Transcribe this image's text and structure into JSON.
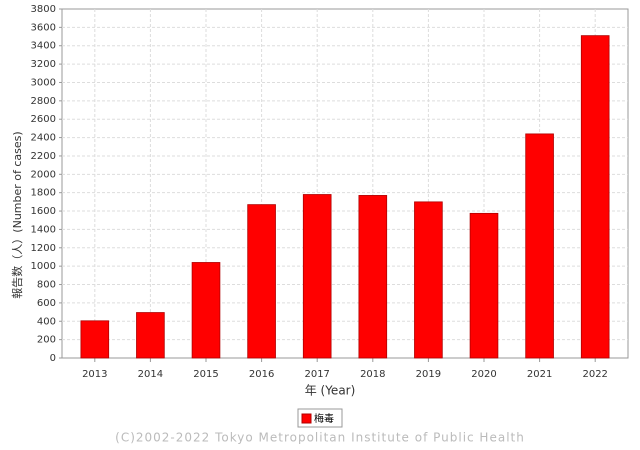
{
  "chart_data": {
    "type": "bar",
    "categories": [
      "2013",
      "2014",
      "2015",
      "2016",
      "2017",
      "2018",
      "2019",
      "2020",
      "2021",
      "2022"
    ],
    "series": [
      {
        "name": "梅毒",
        "color": "#ff0000",
        "values": [
          405,
          495,
          1040,
          1670,
          1780,
          1770,
          1700,
          1575,
          2440,
          3510
        ]
      }
    ],
    "ylim": [
      0,
      3800
    ],
    "yticks": [
      0,
      200,
      400,
      600,
      800,
      1000,
      1200,
      1400,
      1600,
      1800,
      2000,
      2200,
      2400,
      2600,
      2800,
      3000,
      3200,
      3400,
      3600,
      3800
    ],
    "grid": true,
    "x_label": "年 (Year)",
    "y_label": "報告数（人）(Number of cases)",
    "legend": "bottom",
    "footer": "(C)2002-2022 Tokyo Metropolitan Institute of Public Health"
  }
}
